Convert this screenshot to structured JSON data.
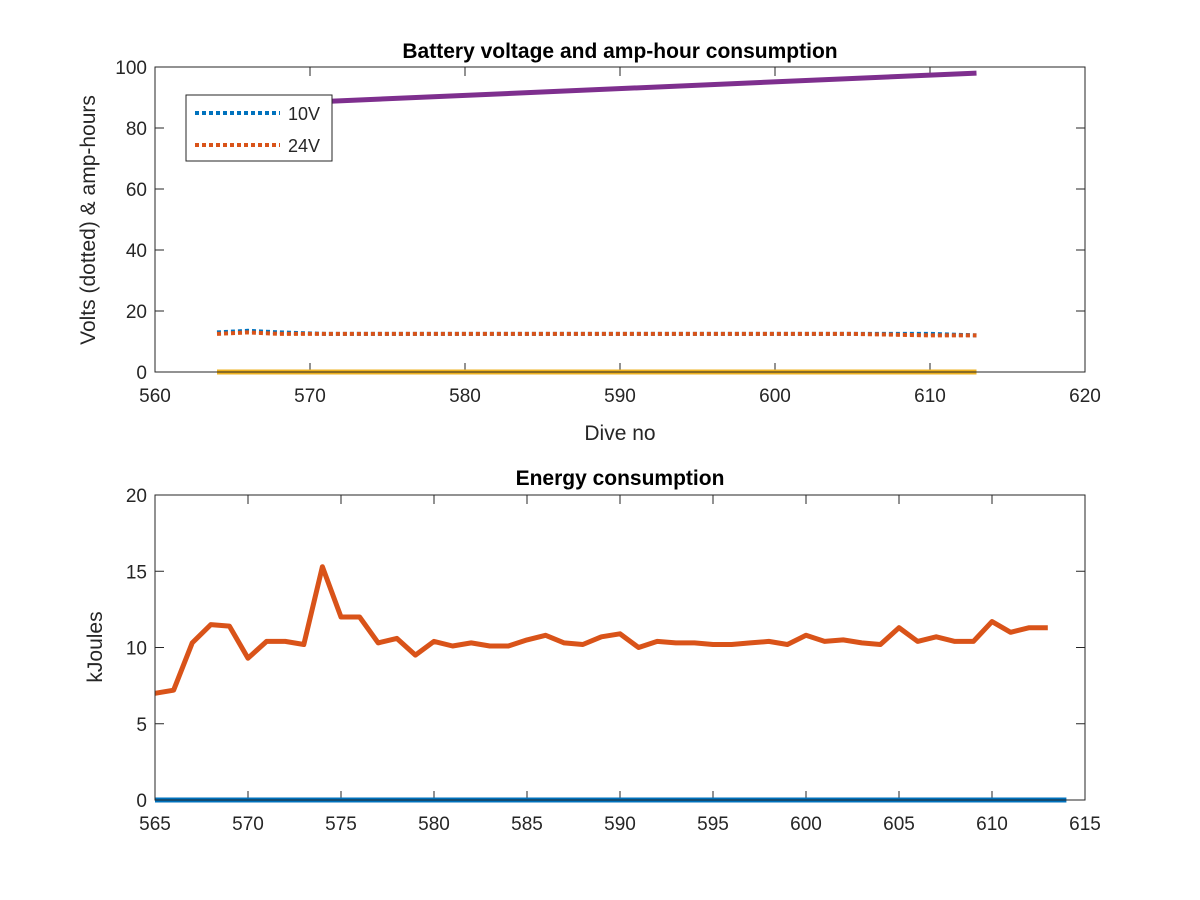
{
  "chart_data": [
    {
      "type": "line",
      "title": "Battery voltage and amp-hour consumption",
      "xlabel": "Dive no",
      "ylabel": "Volts (dotted) & amp-hours",
      "xlim": [
        560,
        620
      ],
      "ylim": [
        0,
        100
      ],
      "xticks": [
        "560",
        "570",
        "580",
        "590",
        "600",
        "610",
        "620"
      ],
      "yticks": [
        "0",
        "20",
        "40",
        "60",
        "80",
        "100"
      ],
      "legend_position": "top-left",
      "series": [
        {
          "name": "10V",
          "color": "#0072bd",
          "style": "dotted",
          "x": [
            564,
            566,
            568,
            571,
            575,
            580,
            585,
            590,
            595,
            600,
            605,
            610,
            613
          ],
          "y": [
            13,
            13.5,
            13,
            12.5,
            12.5,
            12.5,
            12.5,
            12.5,
            12.5,
            12.5,
            12.5,
            12.5,
            12
          ]
        },
        {
          "name": "24V",
          "color": "#d95319",
          "style": "dotted",
          "x": [
            564,
            566,
            568,
            571,
            575,
            580,
            585,
            590,
            595,
            600,
            605,
            610,
            613
          ],
          "y": [
            12.5,
            13,
            12.5,
            12.5,
            12.5,
            12.5,
            12.5,
            12.5,
            12.5,
            12.5,
            12.5,
            12,
            12
          ]
        },
        {
          "color": "#7e2f8e",
          "style": "solid",
          "x": [
            570,
            613
          ],
          "y": [
            88.5,
            98
          ]
        },
        {
          "color": "#edb120",
          "style": "solid",
          "x": [
            564,
            613
          ],
          "y": [
            0,
            0
          ]
        }
      ]
    },
    {
      "type": "line",
      "title": "Energy consumption",
      "xlabel": "",
      "ylabel": "kJoules",
      "xlim": [
        565,
        615
      ],
      "ylim": [
        0,
        20
      ],
      "xticks": [
        "565",
        "570",
        "575",
        "580",
        "585",
        "590",
        "595",
        "600",
        "605",
        "610",
        "615"
      ],
      "yticks": [
        "0",
        "5",
        "10",
        "15",
        "20"
      ],
      "series": [
        {
          "color": "#d95319",
          "style": "solid",
          "x": [
            565,
            566,
            567,
            568,
            569,
            570,
            571,
            572,
            573,
            574,
            575,
            576,
            577,
            578,
            579,
            580,
            581,
            582,
            583,
            584,
            585,
            586,
            587,
            588,
            589,
            590,
            591,
            592,
            593,
            594,
            595,
            596,
            597,
            598,
            599,
            600,
            601,
            602,
            603,
            604,
            605,
            606,
            607,
            608,
            609,
            610,
            611,
            612,
            613
          ],
          "y": [
            7.0,
            7.2,
            10.3,
            11.5,
            11.4,
            9.3,
            10.4,
            10.4,
            10.2,
            15.3,
            12.0,
            12.0,
            10.3,
            10.6,
            9.5,
            10.4,
            10.1,
            10.3,
            10.1,
            10.1,
            10.5,
            10.8,
            10.3,
            10.2,
            10.7,
            10.9,
            10.0,
            10.4,
            10.3,
            10.3,
            10.2,
            10.2,
            10.3,
            10.4,
            10.2,
            10.8,
            10.4,
            10.5,
            10.3,
            10.2,
            11.3,
            10.4,
            10.7,
            10.4,
            10.4,
            11.7,
            11.0,
            11.3,
            11.3
          ]
        },
        {
          "color": "#0072bd",
          "style": "solid",
          "x": [
            565,
            614
          ],
          "y": [
            0,
            0
          ]
        }
      ]
    }
  ]
}
